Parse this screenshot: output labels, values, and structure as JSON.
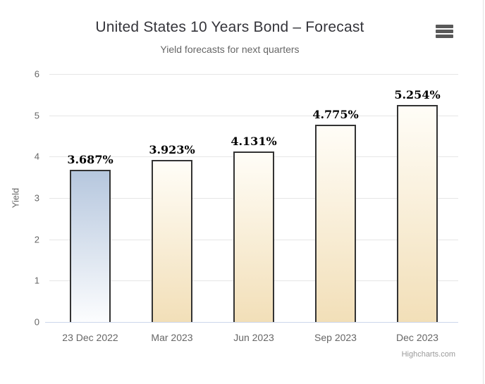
{
  "chart": {
    "title": "United States 10 Years Bond – Forecast",
    "subtitle": "Yield forecasts for next quarters",
    "credit": "Highcharts.com",
    "context_menu_icon": "hamburger-menu-icon"
  },
  "chart_data": {
    "type": "bar",
    "title": "United States 10 Years Bond – Forecast",
    "subtitle": "Yield forecasts for next quarters",
    "xlabel": "",
    "ylabel": "Yield",
    "ylim": [
      0,
      6
    ],
    "yticks": [
      0,
      1,
      2,
      3,
      4,
      5,
      6
    ],
    "grid": true,
    "legend": false,
    "categories": [
      "23 Dec 2022",
      "Mar 2023",
      "Jun 2023",
      "Sep 2023",
      "Dec 2023"
    ],
    "values": [
      3.687,
      3.923,
      4.131,
      4.775,
      5.254
    ],
    "data_labels": [
      "3.687%",
      "3.923%",
      "4.131%",
      "4.775%",
      "5.254%"
    ],
    "point_gradients": [
      {
        "top": "#b6c7de",
        "bottom": "#fcfdfe"
      },
      {
        "top": "#fffdf7",
        "bottom": "#f2dfb8"
      },
      {
        "top": "#fffdf7",
        "bottom": "#f2dfb8"
      },
      {
        "top": "#fffdf7",
        "bottom": "#f2dfb8"
      },
      {
        "top": "#fffdf7",
        "bottom": "#f2dfb8"
      }
    ]
  },
  "colors": {
    "bar_border": "#333333",
    "gridline": "#e6e6e6",
    "axis_line": "#ccd6eb",
    "title": "#35353b",
    "subtitle": "#666666",
    "axis_label": "#666666",
    "data_label": "#000000",
    "credit": "#999999",
    "menu_icon": "#595959",
    "page_border": "#e3e3e3"
  }
}
